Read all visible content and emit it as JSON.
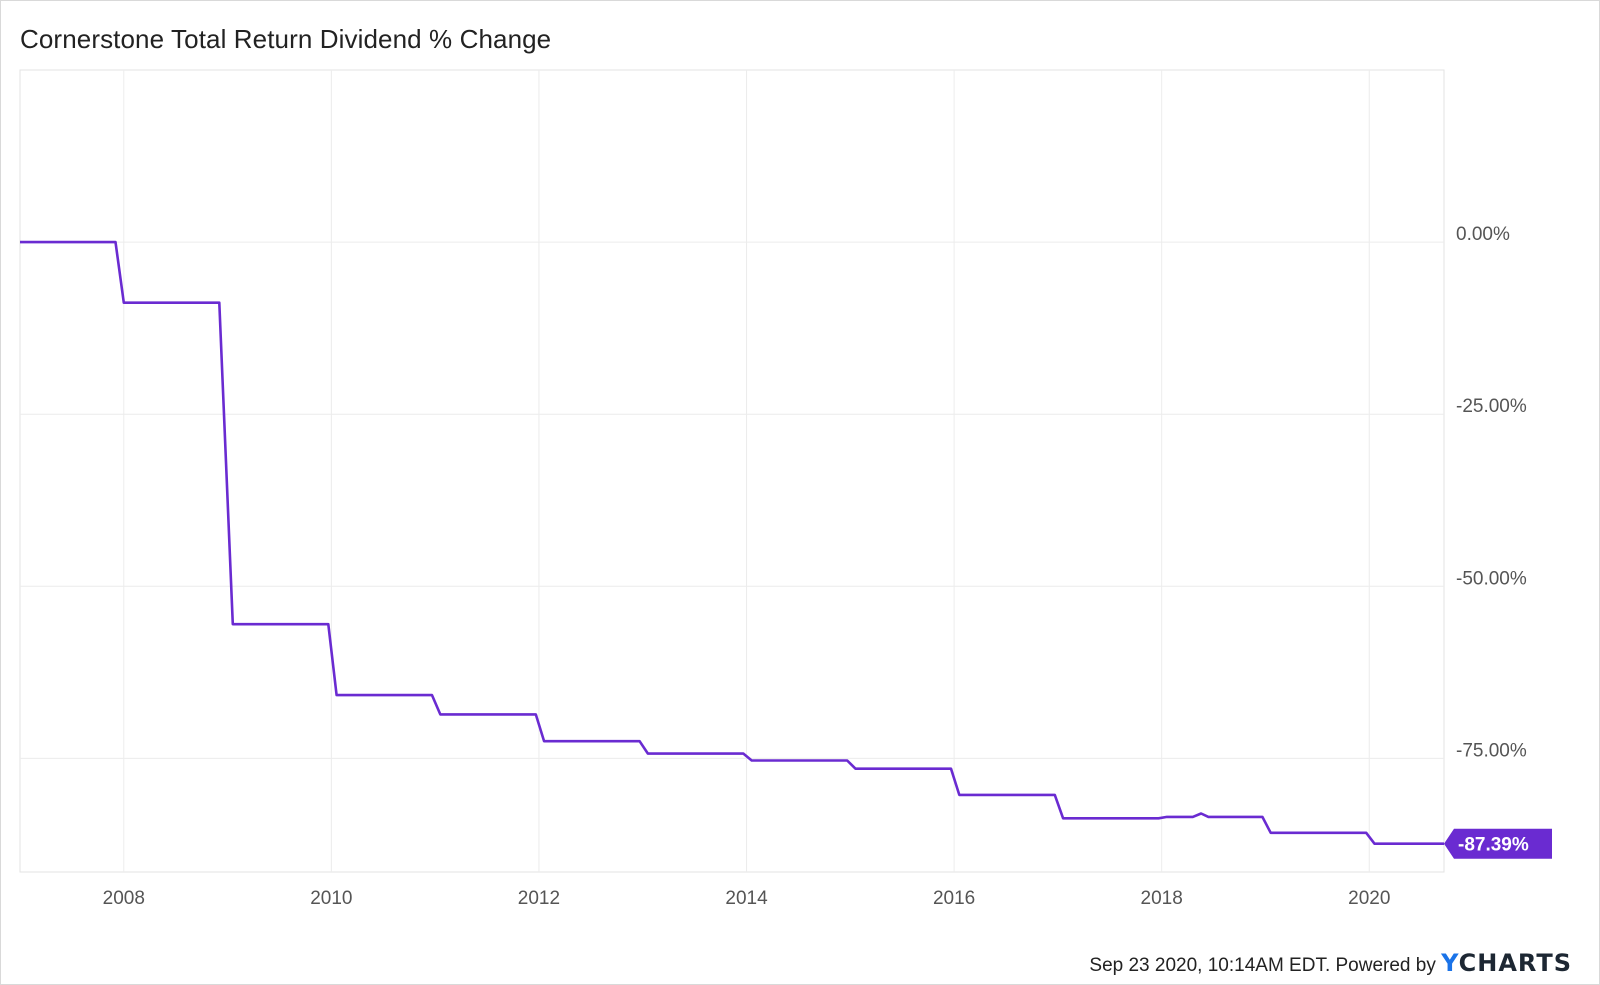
{
  "chart_data": {
    "type": "line",
    "title": "Cornerstone Total Return Dividend % Change",
    "xlabel": "",
    "ylabel": "",
    "x_ticks": [
      "2008",
      "2010",
      "2012",
      "2014",
      "2016",
      "2018",
      "2020"
    ],
    "y_ticks": [
      0,
      -25,
      -50,
      -75
    ],
    "y_tick_labels": [
      "0.00%",
      "-25.00%",
      "-50.00%",
      "-75.00%"
    ],
    "xlim": [
      2007.0,
      2020.72
    ],
    "ylim": [
      -91.5,
      25
    ],
    "grid": true,
    "line_color": "#6a2bd1",
    "series": [
      {
        "name": "",
        "points": [
          [
            2007.0,
            0.0
          ],
          [
            2007.92,
            0.0
          ],
          [
            2008.0,
            -8.8
          ],
          [
            2008.92,
            -8.8
          ],
          [
            2009.05,
            -55.5
          ],
          [
            2009.97,
            -55.5
          ],
          [
            2010.05,
            -65.8
          ],
          [
            2010.97,
            -65.8
          ],
          [
            2011.05,
            -68.6
          ],
          [
            2011.97,
            -68.6
          ],
          [
            2012.05,
            -72.5
          ],
          [
            2012.97,
            -72.5
          ],
          [
            2013.05,
            -74.3
          ],
          [
            2013.97,
            -74.3
          ],
          [
            2014.05,
            -75.3
          ],
          [
            2014.97,
            -75.3
          ],
          [
            2015.05,
            -76.5
          ],
          [
            2015.97,
            -76.5
          ],
          [
            2016.05,
            -80.3
          ],
          [
            2016.97,
            -80.3
          ],
          [
            2017.05,
            -83.7
          ],
          [
            2017.97,
            -83.7
          ],
          [
            2018.05,
            -83.5
          ],
          [
            2018.3,
            -83.5
          ],
          [
            2018.38,
            -83.0
          ],
          [
            2018.45,
            -83.5
          ],
          [
            2018.97,
            -83.5
          ],
          [
            2019.05,
            -85.8
          ],
          [
            2019.97,
            -85.8
          ],
          [
            2020.05,
            -87.39
          ],
          [
            2020.72,
            -87.39
          ]
        ]
      }
    ],
    "last_value_label": "-87.39%"
  },
  "footer": {
    "timestamp": "Sep 23 2020, 10:14AM EDT. Powered by",
    "logo_y": "Y",
    "logo_rest": "CHARTS"
  }
}
